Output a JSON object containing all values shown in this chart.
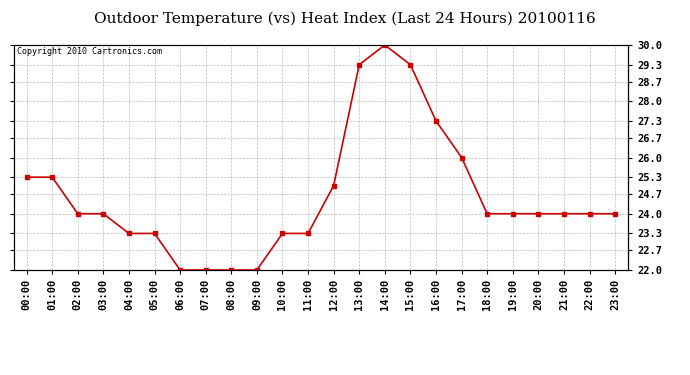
{
  "title": "Outdoor Temperature (vs) Heat Index (Last 24 Hours) 20100116",
  "copyright": "Copyright 2010 Cartronics.com",
  "x_labels": [
    "00:00",
    "01:00",
    "02:00",
    "03:00",
    "04:00",
    "05:00",
    "06:00",
    "07:00",
    "08:00",
    "09:00",
    "10:00",
    "11:00",
    "12:00",
    "13:00",
    "14:00",
    "15:00",
    "16:00",
    "17:00",
    "18:00",
    "19:00",
    "20:00",
    "21:00",
    "22:00",
    "23:00"
  ],
  "y_values": [
    25.3,
    25.3,
    24.0,
    24.0,
    23.3,
    23.3,
    22.0,
    22.0,
    22.0,
    22.0,
    23.3,
    23.3,
    25.0,
    29.3,
    30.0,
    29.3,
    27.3,
    26.0,
    24.0,
    24.0,
    24.0,
    24.0,
    24.0,
    24.0
  ],
  "y_ticks": [
    22.0,
    22.7,
    23.3,
    24.0,
    24.7,
    25.3,
    26.0,
    26.7,
    27.3,
    28.0,
    28.7,
    29.3,
    30.0
  ],
  "ylim": [
    22.0,
    30.0
  ],
  "line_color": "#cc0000",
  "marker": "s",
  "marker_size": 2.5,
  "background_color": "#ffffff",
  "grid_color": "#bbbbbb",
  "title_fontsize": 11,
  "copyright_fontsize": 6,
  "tick_fontsize": 7.5
}
